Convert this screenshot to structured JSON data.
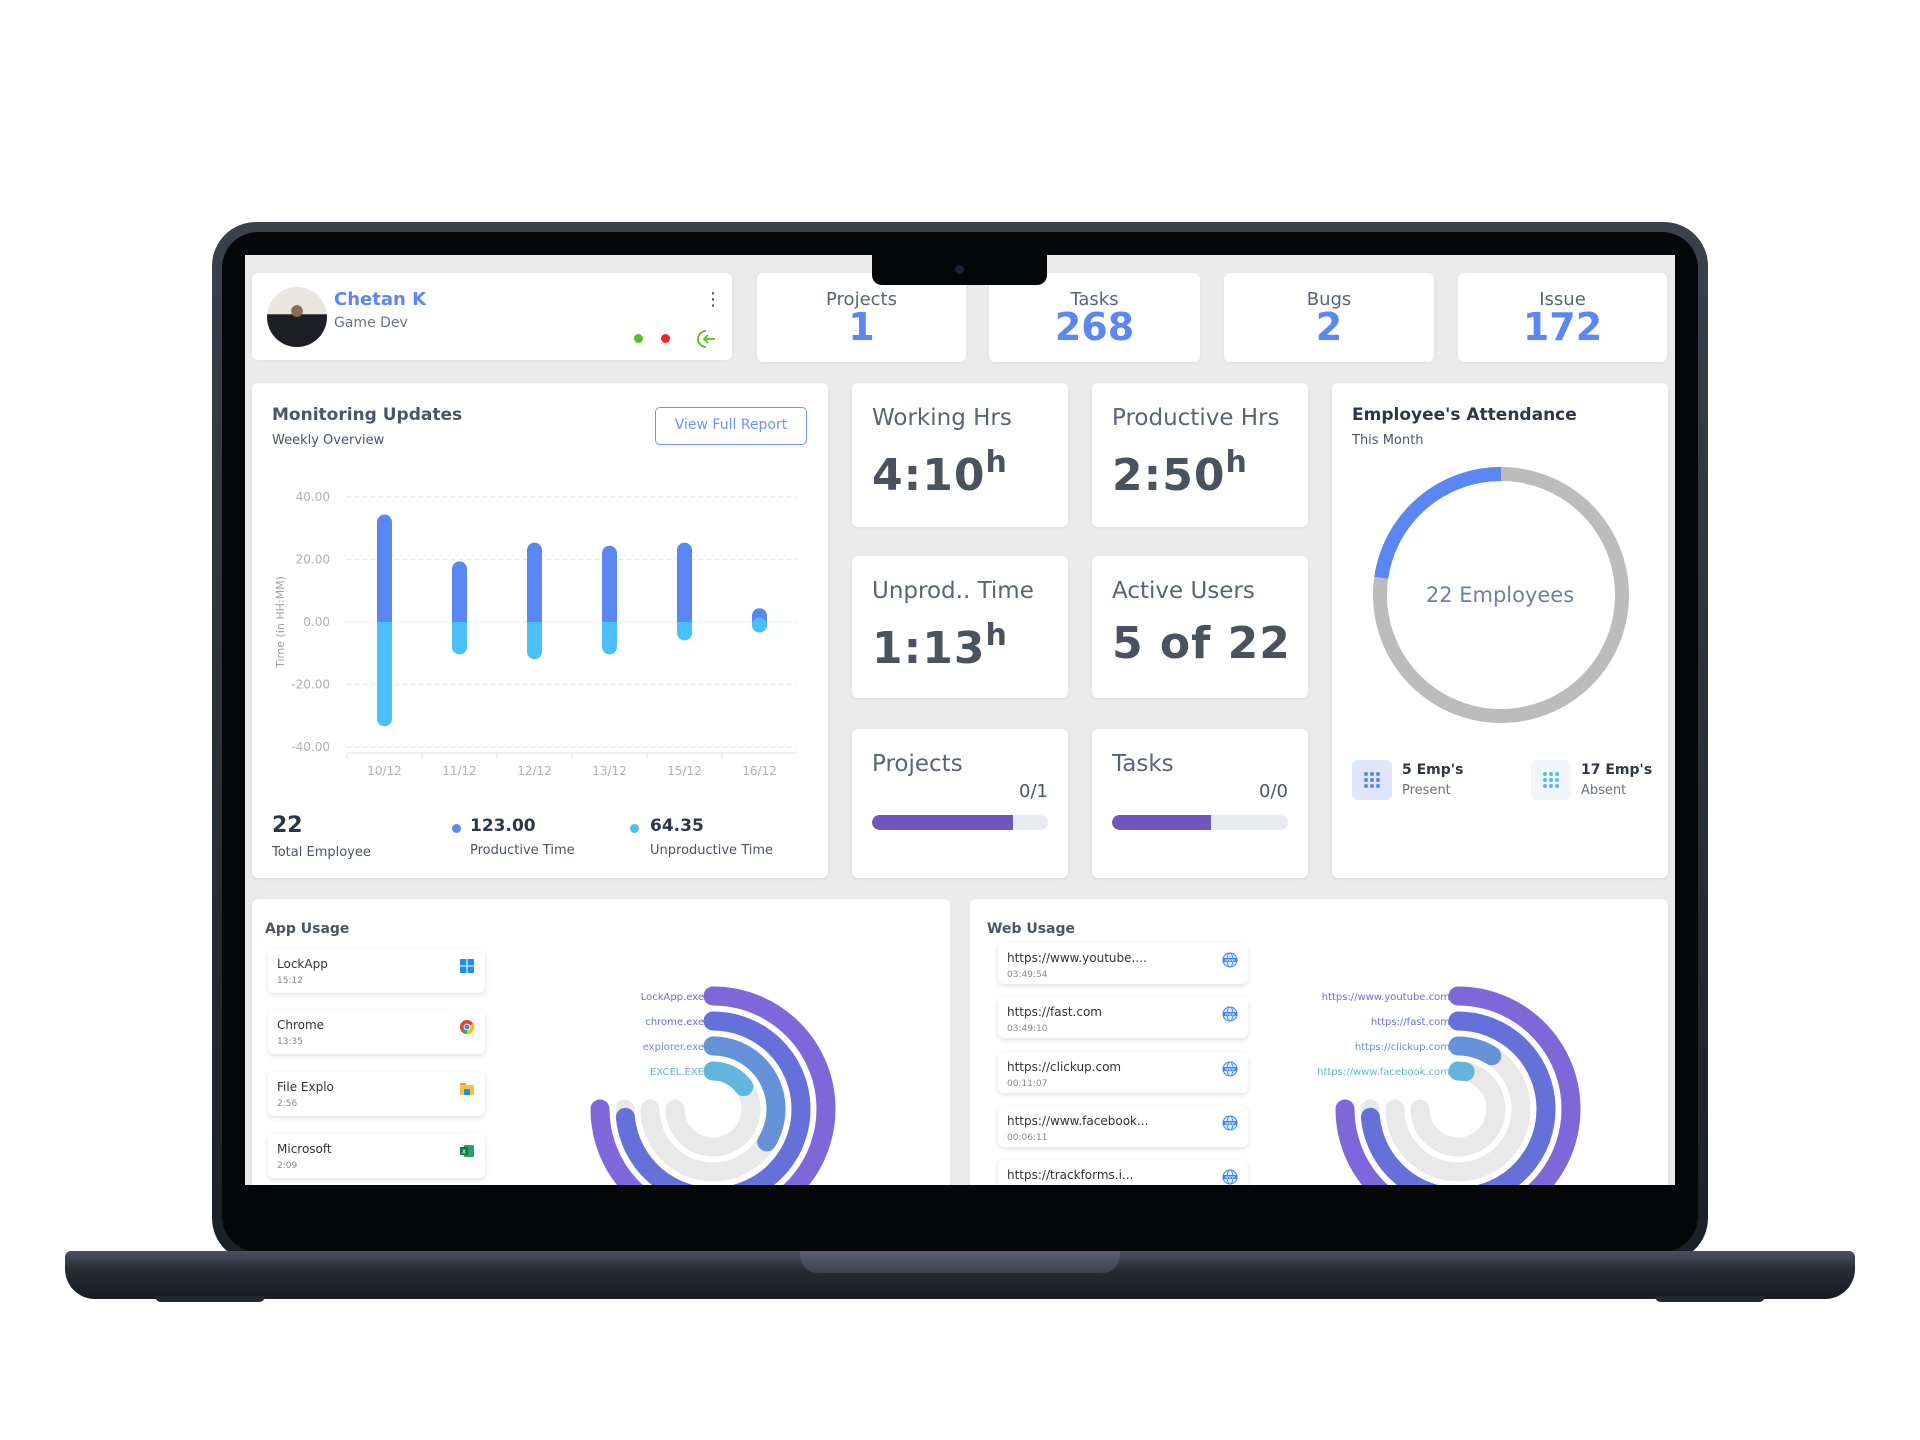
{
  "profile": {
    "name": "Chetan K",
    "role": "Game Dev",
    "status_dots": [
      "#52c41a",
      "#f5222d"
    ],
    "icons": [
      "kebab-menu-icon",
      "logout-icon"
    ]
  },
  "stats": [
    {
      "label": "Projects",
      "value": "1"
    },
    {
      "label": "Tasks",
      "value": "268"
    },
    {
      "label": "Bugs",
      "value": "2"
    },
    {
      "label": "Issue",
      "value": "172"
    }
  ],
  "monitoring": {
    "title": "Monitoring Updates",
    "subtitle": "Weekly Overview",
    "button": "View Full Report",
    "total_value": "22",
    "total_label": "Total Employee",
    "productive_value": "123.00",
    "productive_label": "Productive Time",
    "unproductive_value": "64.35",
    "unproductive_label": "Unproductive Time"
  },
  "chart_data": {
    "type": "bar",
    "stacked": true,
    "categories": [
      "10/12",
      "11/12",
      "12/12",
      "13/12",
      "15/12",
      "16/12"
    ],
    "series": [
      {
        "name": "Productive Time",
        "color": "#5b87f5",
        "values": [
          32,
          17,
          23,
          22,
          23,
          2
        ]
      },
      {
        "name": "Unproductive Time",
        "color": "#4bbffa",
        "values": [
          -31,
          -8,
          -9.5,
          -8,
          -3.5,
          -1
        ]
      }
    ],
    "ylabel": "Time (in HH:MM)",
    "ylim": [
      -40,
      40
    ],
    "yticks": [
      "40.00",
      "20.00",
      "0.00",
      "-20.00",
      "-40.00"
    ],
    "grid": true
  },
  "metrics": {
    "working": {
      "title": "Working Hrs",
      "value": "4:10",
      "unit": "h"
    },
    "productive": {
      "title": "Productive Hrs",
      "value": "2:50",
      "unit": "h"
    },
    "unproductive": {
      "title": "Unprod.. Time",
      "value": "1:13",
      "unit": "h"
    },
    "active": {
      "title": "Active Users",
      "value": "5 of 22"
    },
    "projects": {
      "title": "Projects",
      "value": "0/1",
      "progress": 0.8
    },
    "tasks": {
      "title": "Tasks",
      "value": "0/0",
      "progress": 0.56
    }
  },
  "attendance": {
    "title": "Employee's Attendance",
    "subtitle": "This Month",
    "center": "22 Employees",
    "present": 5,
    "total": 22,
    "present_value": "5 Emp's",
    "present_label": "Present",
    "absent_value": "17 Emp's",
    "absent_label": "Absent",
    "colors": {
      "present": "#5b87f5",
      "absent": "#bbbcbb"
    }
  },
  "app_usage": {
    "title": "App Usage",
    "items": [
      {
        "name": "LockApp",
        "time": "15:12",
        "icon": "windows-icon"
      },
      {
        "name": "Chrome",
        "time": "13:35",
        "icon": "chrome-icon"
      },
      {
        "name": "File Explo",
        "time": "2:56",
        "icon": "folder-icon"
      },
      {
        "name": "Microsoft",
        "time": "2:09",
        "icon": "excel-icon"
      }
    ],
    "rings": [
      {
        "label": "LockApp.exe",
        "fill": 1.0,
        "color": "#7e67d9"
      },
      {
        "label": "chrome.exe",
        "fill": 0.98,
        "color": "#6570d9"
      },
      {
        "label": "explorer.exe",
        "fill": 0.45,
        "color": "#6592d9"
      },
      {
        "label": "EXCEL.EXE",
        "fill": 0.2,
        "color": "#63b5dc"
      }
    ]
  },
  "web_usage": {
    "title": "Web Usage",
    "items": [
      {
        "name": "https://www.youtube....",
        "time": "03:49:54"
      },
      {
        "name": "https://fast.com",
        "time": "03:49:10"
      },
      {
        "name": "https://clickup.com",
        "time": "00:11:07"
      },
      {
        "name": "https://www.facebook...",
        "time": "00:06:11"
      },
      {
        "name": "https://trackforms.i..."
      }
    ],
    "rings": [
      {
        "label": "https://www.youtube.com",
        "fill": 1.0,
        "color": "#7e67d9"
      },
      {
        "label": "https://fast.com",
        "fill": 0.98,
        "color": "#6570d9"
      },
      {
        "label": "https://clickup.com",
        "fill": 0.12,
        "color": "#6592d9"
      },
      {
        "label": "https://www.facebook.com",
        "fill": 0.04,
        "color": "#63b5dc"
      }
    ]
  }
}
